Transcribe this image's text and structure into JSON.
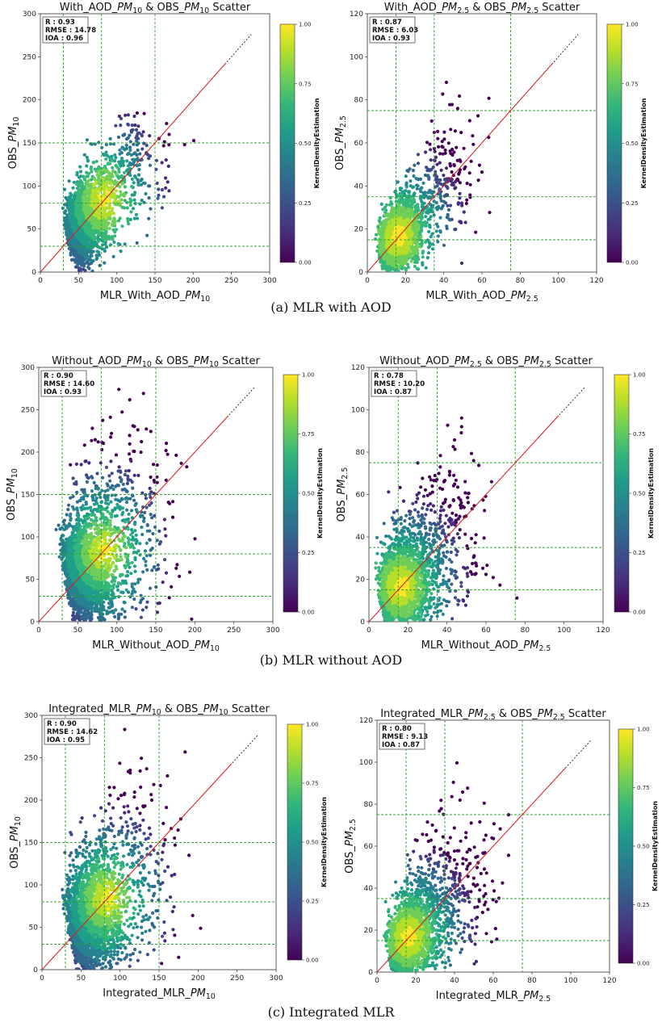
{
  "colors": {
    "viridis": [
      "#440154",
      "#482878",
      "#3e4989",
      "#31688e",
      "#26828e",
      "#1f9e89",
      "#35b779",
      "#6ece58",
      "#b5de2b",
      "#fde725"
    ],
    "identity_line": "#e41a1c",
    "extension_line": "#000000",
    "threshold_line": "#2ca02c"
  },
  "sections": [
    {
      "caption": "(a) MLR with AOD"
    },
    {
      "caption": "(b) MLR without AOD"
    },
    {
      "caption": "(c) Integrated MLR"
    }
  ],
  "chart_data": [
    {
      "type": "scatter",
      "title": "With_AOD_PM10 & OBS_PM10 Scatter",
      "title_parts": [
        "With_AOD_",
        "PM",
        "10",
        " & OBS_",
        "PM",
        "10",
        " Scatter"
      ],
      "xlabel_parts": [
        "MLR_With_AOD_",
        "PM",
        "10"
      ],
      "ylabel_parts": [
        "OBS_",
        "PM",
        "10"
      ],
      "xlim": [
        0,
        300
      ],
      "ylim": [
        0,
        300
      ],
      "xticks": [
        0,
        50,
        100,
        150,
        200,
        250,
        300
      ],
      "yticks": [
        0,
        50,
        100,
        150,
        200,
        250,
        300
      ],
      "stats": {
        "r": "R : 0.93",
        "rmse": "RMSE : 14.78",
        "ioa": "IOA : 0.96"
      },
      "thresholds": [
        30,
        80,
        150
      ],
      "colorbar": {
        "label": "KernelDensityEstimation",
        "ticks": [
          "0.00",
          "0.25",
          "0.50",
          "0.75",
          "1.00"
        ]
      },
      "grid": false
    },
    {
      "type": "scatter",
      "title": "With_AOD_PM2.5 & OBS_PM2.5 Scatter",
      "title_parts": [
        "With_AOD_",
        "PM",
        "2.5",
        " & OBS_",
        "PM",
        "2.5",
        " Scatter"
      ],
      "xlabel_parts": [
        "MLR_With_AOD_",
        "PM",
        "2.5"
      ],
      "ylabel_parts": [
        "OBS_",
        "PM",
        "2.5"
      ],
      "xlim": [
        0,
        120
      ],
      "ylim": [
        0,
        120
      ],
      "xticks": [
        0,
        20,
        40,
        60,
        80,
        100,
        120
      ],
      "yticks": [
        0,
        20,
        40,
        60,
        80,
        100,
        120
      ],
      "stats": {
        "r": "R : 0.87",
        "rmse": "RMSE : 6.03",
        "ioa": "IOA : 0.93"
      },
      "thresholds": [
        15,
        35,
        75
      ],
      "colorbar": {
        "label": "KernelDensityEstimation",
        "ticks": [
          "0.00",
          "0.25",
          "0.50",
          "0.75",
          "1.00"
        ]
      },
      "grid": false
    },
    {
      "type": "scatter",
      "title": "Without_AOD_PM10 & OBS_PM10 Scatter",
      "title_parts": [
        "Without_AOD_",
        "PM",
        "10",
        " & OBS_",
        "PM",
        "10",
        " Scatter"
      ],
      "xlabel_parts": [
        "MLR_Without_AOD_",
        "PM",
        "10"
      ],
      "ylabel_parts": [
        "OBS_",
        "PM",
        "10"
      ],
      "xlim": [
        0,
        300
      ],
      "ylim": [
        0,
        300
      ],
      "xticks": [
        0,
        50,
        100,
        150,
        200,
        250,
        300
      ],
      "yticks": [
        0,
        50,
        100,
        150,
        200,
        250,
        300
      ],
      "stats": {
        "r": "R : 0.90",
        "rmse": "RMSE : 14.60",
        "ioa": "IOA : 0.93"
      },
      "thresholds": [
        30,
        80,
        150
      ],
      "colorbar": {
        "label": "KernelDensityEstimation",
        "ticks": [
          "0.00",
          "0.25",
          "0.50",
          "0.75",
          "1.00"
        ]
      },
      "grid": false
    },
    {
      "type": "scatter",
      "title": "Without_AOD_PM2.5 & OBS_PM2.5 Scatter",
      "title_parts": [
        "Without_AOD_",
        "PM",
        "2.5",
        " & OBS_",
        "PM",
        "2.5",
        " Scatter"
      ],
      "xlabel_parts": [
        "MLR_Without_AOD_",
        "PM",
        "2.5"
      ],
      "ylabel_parts": [
        "OBS_",
        "PM",
        "2.5"
      ],
      "xlim": [
        0,
        120
      ],
      "ylim": [
        0,
        120
      ],
      "xticks": [
        0,
        20,
        40,
        60,
        80,
        100,
        120
      ],
      "yticks": [
        0,
        20,
        40,
        60,
        80,
        100,
        120
      ],
      "stats": {
        "r": "R : 0.78",
        "rmse": "RMSE : 10.20",
        "ioa": "IOA : 0.87"
      },
      "thresholds": [
        15,
        35,
        75
      ],
      "colorbar": {
        "label": "KernelDensityEstimation",
        "ticks": [
          "0.00",
          "0.25",
          "0.50",
          "0.75",
          "1.00"
        ]
      },
      "grid": false
    },
    {
      "type": "scatter",
      "title": "Integrated_MLR_PM10 & OBS_PM10 Scatter",
      "title_parts": [
        "Integrated_MLR_",
        "PM",
        "10",
        " & OBS_",
        "PM",
        "10",
        " Scatter"
      ],
      "xlabel_parts": [
        "Integrated_MLR_",
        "PM",
        "10"
      ],
      "ylabel_parts": [
        "OBS_",
        "PM",
        "10"
      ],
      "xlim": [
        0,
        300
      ],
      "ylim": [
        0,
        300
      ],
      "xticks": [
        0,
        50,
        100,
        150,
        200,
        250,
        300
      ],
      "yticks": [
        0,
        50,
        100,
        150,
        200,
        250,
        300
      ],
      "stats": {
        "r": "R : 0.90",
        "rmse": "RMSE : 14.62",
        "ioa": "IOA : 0.95"
      },
      "thresholds": [
        30,
        80,
        150
      ],
      "colorbar": {
        "label": "KernelDensityEstimation",
        "ticks": [
          "0.00",
          "0.25",
          "0.50",
          "0.75",
          "1.00"
        ]
      },
      "grid": false
    },
    {
      "type": "scatter",
      "title": "Integrated_MLR_PM2.5 & OBS_PM2.5 Scatter",
      "title_parts": [
        "Integrated_MLR_",
        "PM",
        "2.5",
        " & OBS_",
        "PM",
        "2.5",
        " Scatter"
      ],
      "xlabel_parts": [
        "Integrated_MLR_",
        "PM",
        "2.5"
      ],
      "ylabel_parts": [
        "OBS_",
        "PM",
        "2.5"
      ],
      "xlim": [
        0,
        120
      ],
      "ylim": [
        0,
        120
      ],
      "xticks": [
        0,
        20,
        40,
        60,
        80,
        100,
        120
      ],
      "yticks": [
        0,
        20,
        40,
        60,
        80,
        100,
        120
      ],
      "stats": {
        "r": "R : 0.80",
        "rmse": "RMSE : 9.13",
        "ioa": "IOA : 0.87"
      },
      "thresholds": [
        15,
        35,
        75
      ],
      "colorbar": {
        "label": "KernelDensityEstimation",
        "ticks": [
          "0.00",
          "0.25",
          "0.50",
          "0.75",
          "1.00"
        ]
      },
      "grid": false
    }
  ]
}
